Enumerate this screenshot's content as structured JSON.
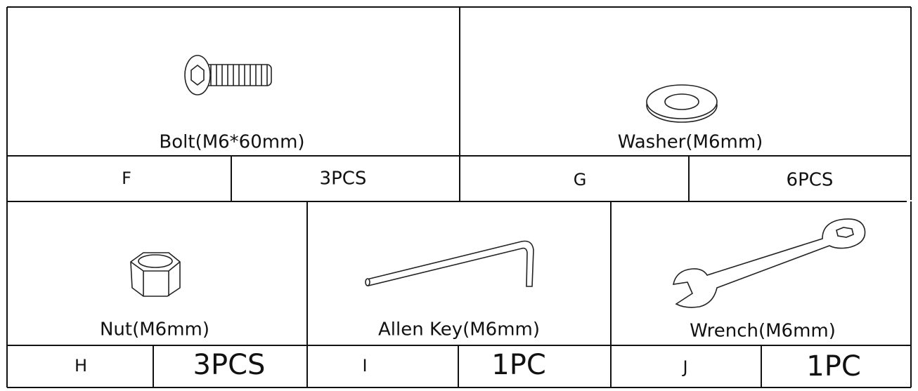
{
  "parts": [
    {
      "name": "Bolt(M6*60mm)",
      "code": "F",
      "quantity": "3PCS"
    },
    {
      "name": "Washer(M6mm)",
      "code": "G",
      "quantity": "6PCS"
    },
    {
      "name": "Nut(M6mm)",
      "code": "H",
      "quantity": "3PCS"
    },
    {
      "name": "Allen Key(M6mm)",
      "code": "I",
      "quantity": "1PC"
    },
    {
      "name": "Wrench(M6mm)",
      "code": "J",
      "quantity": "1PC"
    }
  ]
}
